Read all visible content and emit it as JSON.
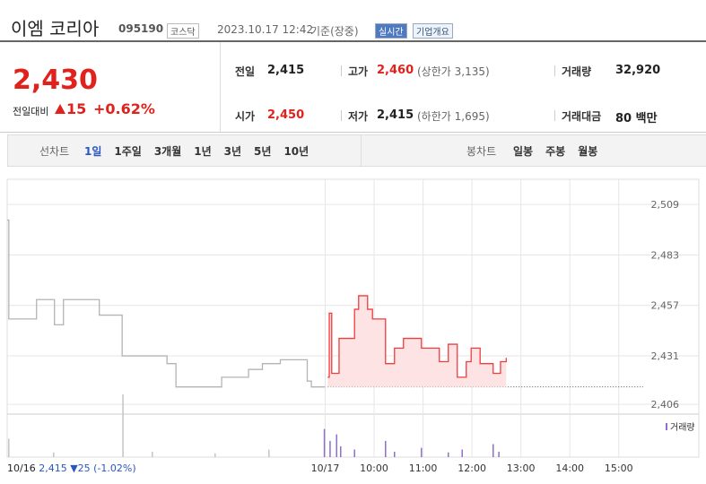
{
  "header": {
    "name": "이엠 코리아",
    "code": "095190",
    "market": "코스닥",
    "datetime": "2023.10.17 12:42",
    "basis": "기준(장중)",
    "realtime": "실시간",
    "overview": "기업개요"
  },
  "quote": {
    "price": "2,430",
    "change_label": "전일대비",
    "change": "15",
    "rate": "+0.62%"
  },
  "stats": [
    [
      {
        "label": "전일",
        "value": "2,415"
      },
      {
        "label": "고가",
        "value": "2,460",
        "note": "(상한가 3,135)"
      },
      {
        "label": "거래량",
        "value": "32,920"
      }
    ],
    [
      {
        "label": "시가",
        "value": "2,450"
      },
      {
        "label": "저가",
        "value": "2,415",
        "note": "(하한가 1,695)"
      },
      {
        "label": "거래대금",
        "value": "80 백만"
      }
    ]
  ],
  "tabs": {
    "line_label": "선차트",
    "line": [
      "1일",
      "1주일",
      "3개월",
      "1년",
      "3년",
      "5년",
      "10년"
    ],
    "candle_label": "봉차트",
    "candle": [
      "일봉",
      "주봉",
      "월봉"
    ]
  },
  "prev_day": {
    "date": "10/16",
    "close": "2,415",
    "change": "▼25",
    "rate": "(-1.02%)"
  },
  "chart_data": {
    "type": "line",
    "xlim": [
      0,
      780
    ],
    "xticks": [
      {
        "value": 390,
        "label": "10/17"
      },
      {
        "value": 450,
        "label": "10:00"
      },
      {
        "value": 510,
        "label": "11:00"
      },
      {
        "value": 570,
        "label": "12:00"
      },
      {
        "value": 630,
        "label": "13:00"
      },
      {
        "value": 690,
        "label": "14:00"
      },
      {
        "value": 750,
        "label": "15:00"
      }
    ],
    "ylim": [
      2401,
      2522
    ],
    "yticks": [
      {
        "value": 2509,
        "label": "2,509"
      },
      {
        "value": 2483,
        "label": "2,483"
      },
      {
        "value": 2457,
        "label": "2,457"
      },
      {
        "value": 2431,
        "label": "2,431"
      },
      {
        "value": 2406,
        "label": "2,406"
      }
    ],
    "grid": true,
    "series": [
      {
        "color": "#b4b4b4",
        "x": [
          0,
          2,
          36,
          58,
          69,
          113,
          141,
          168,
          196,
          207,
          263,
          296,
          313,
          335,
          368,
          373,
          390
        ],
        "values": [
          2501,
          2450,
          2460,
          2447,
          2460,
          2452,
          2431,
          2431,
          2427,
          2415,
          2420,
          2424,
          2427,
          2429,
          2418,
          2415,
          2415
        ]
      },
      {
        "color": "#f03c3c",
        "fill": "#fde3e3",
        "x": [
          393,
          395,
          398,
          407,
          426,
          431,
          442,
          448,
          464,
          475,
          486,
          508,
          530,
          541,
          552,
          563,
          569,
          580,
          596,
          605,
          612
        ],
        "values": [
          2420,
          2453,
          2422,
          2440,
          2455,
          2462,
          2455,
          2450,
          2427,
          2435,
          2440,
          2435,
          2428,
          2437,
          2420,
          2428,
          2435,
          2427,
          2422,
          2428,
          2430
        ]
      }
    ],
    "reference": 2415,
    "volume_label": "거래량",
    "volume": [
      {
        "color": "#c4c4c4",
        "x": [
          2,
          57,
          142,
          178,
          255,
          321
        ],
        "values": [
          1700,
          430,
          5800,
          500,
          350,
          700
        ]
      },
      {
        "color": "#8f6fc9",
        "x": [
          389,
          396,
          404,
          409,
          426,
          464,
          475,
          508,
          541,
          558,
          596,
          603
        ],
        "values": [
          2600,
          1500,
          2100,
          1000,
          700,
          1500,
          500,
          860,
          430,
          700,
          1200,
          500
        ]
      }
    ]
  }
}
